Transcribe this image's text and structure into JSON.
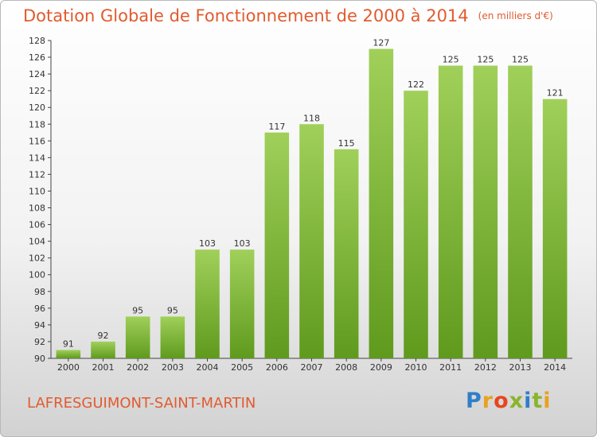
{
  "title": "Dotation Globale de Fonctionnement de 2000 à 2014",
  "unit_note": "(en milliers d'€)",
  "commune": "LAFRESGUIMONT-SAINT-MARTIN",
  "logo": {
    "text": "Proxiti",
    "colors": [
      "#2f7ec9",
      "#e8a21f",
      "#e8451f",
      "#8ab42d",
      "#2f7ec9",
      "#8ab42d",
      "#e8a21f"
    ]
  },
  "colors": {
    "title": "#e15b2f",
    "bar_light": "#a0d05a",
    "bar_dark": "#5f9a1d"
  },
  "chart_data": {
    "type": "bar",
    "title": "Dotation Globale de Fonctionnement de 2000 à 2014",
    "xlabel": "",
    "ylabel": "",
    "categories": [
      "2000",
      "2001",
      "2002",
      "2003",
      "2004",
      "2005",
      "2006",
      "2007",
      "2008",
      "2009",
      "2010",
      "2011",
      "2012",
      "2013",
      "2014"
    ],
    "values": [
      91,
      92,
      95,
      95,
      103,
      103,
      117,
      118,
      115,
      127,
      122,
      125,
      125,
      125,
      121
    ],
    "ylim": [
      90,
      128
    ],
    "yticks": [
      90,
      92,
      94,
      96,
      98,
      100,
      102,
      104,
      106,
      108,
      110,
      112,
      114,
      116,
      118,
      120,
      122,
      124,
      126,
      128
    ],
    "grid": false,
    "data_labels": true
  }
}
